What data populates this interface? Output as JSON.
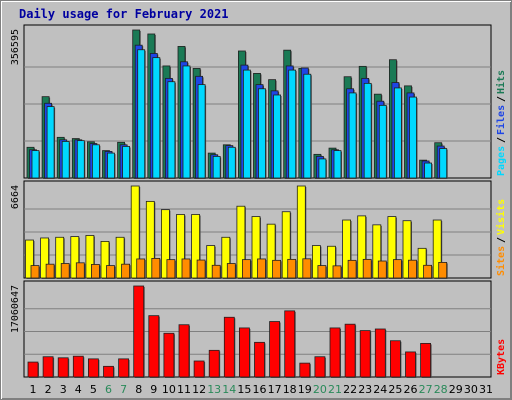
{
  "chart_data": {
    "type": "bar",
    "title": "Daily usage for February 2021",
    "categories": [
      "1",
      "2",
      "3",
      "4",
      "5",
      "6",
      "7",
      "8",
      "9",
      "10",
      "11",
      "12",
      "13",
      "14",
      "15",
      "16",
      "17",
      "18",
      "19",
      "20",
      "21",
      "22",
      "23",
      "24",
      "25",
      "26",
      "27",
      "28",
      "29",
      "30",
      "31"
    ],
    "weekend_days": [
      6,
      7,
      13,
      14,
      20,
      21,
      27,
      28
    ],
    "colors": {
      "hits": "#1a7a55",
      "files": "#1e46e6",
      "pages": "#00d8ff",
      "visits": "#ffff00",
      "sites": "#ff8c00",
      "kbytes": "#ff0000",
      "weekday_label": "#000000",
      "weekend_label": "#2a8a5a"
    },
    "panels": [
      {
        "id": "top",
        "ymax": 356595,
        "ymax_label": "356595",
        "legend": [
          {
            "label": "Pages",
            "color": "#00d8ff"
          },
          {
            "label": "Files",
            "color": "#1e46e6"
          },
          {
            "label": "Hits",
            "color": "#1a7a55"
          }
        ],
        "series": [
          {
            "name": "Hits",
            "color": "#1a7a55",
            "values": [
              74000,
              196000,
              98000,
              95000,
              87000,
              66000,
              86000,
              356595,
              347000,
              270000,
              317000,
              264000,
              60000,
              80000,
              306000,
              252000,
              237000,
              308000,
              264000,
              57000,
              72000,
              244000,
              269000,
              202000,
              285000,
              222000,
              43000,
              85000,
              0,
              0,
              0
            ]
          },
          {
            "name": "Files",
            "color": "#1e46e6",
            "values": [
              68000,
              180000,
              92000,
              92000,
              83000,
              64000,
              80000,
              320000,
              300000,
              240000,
              280000,
              245000,
              56000,
              78000,
              272000,
              225000,
              210000,
              270000,
              265000,
              52000,
              68000,
              215000,
              240000,
              185000,
              230000,
              205000,
              41000,
              77000,
              0,
              0,
              0
            ]
          },
          {
            "name": "Pages",
            "color": "#00d8ff",
            "values": [
              66000,
              172000,
              88000,
              90000,
              80000,
              60000,
              76000,
              309000,
              290000,
              232000,
              270000,
              225000,
              52000,
              74000,
              260000,
              215000,
              200000,
              260000,
              250000,
              46000,
              66000,
              205000,
              228000,
              175000,
              217000,
              195000,
              36000,
              71000,
              0,
              0,
              0
            ]
          }
        ]
      },
      {
        "id": "mid",
        "ymax": 6664,
        "ymax_label": "6664",
        "legend": [
          {
            "label": "Sites",
            "color": "#ff8c00"
          },
          {
            "label": "Visits",
            "color": "#ffff00"
          }
        ],
        "series": [
          {
            "name": "Visits",
            "color": "#ffff00",
            "values": [
              2750,
              2900,
              2950,
              3000,
              3080,
              2650,
              2950,
              6664,
              5550,
              4950,
              4600,
              4600,
              2350,
              2950,
              5200,
              4450,
              3900,
              4800,
              6664,
              2350,
              2300,
              4200,
              4500,
              3850,
              4450,
              4150,
              2150,
              4200,
              0,
              0,
              0
            ]
          },
          {
            "name": "Sites",
            "color": "#ff8c00",
            "values": [
              900,
              1000,
              1050,
              1100,
              980,
              900,
              1000,
              1380,
              1420,
              1330,
              1380,
              1300,
              920,
              1050,
              1330,
              1380,
              1280,
              1350,
              1390,
              900,
              880,
              1280,
              1350,
              1230,
              1330,
              1290,
              920,
              1130,
              0,
              0,
              0
            ]
          }
        ]
      },
      {
        "id": "bot",
        "ymax": 17060647,
        "ymax_label": "17060647",
        "legend": [
          {
            "label": "KBytes",
            "color": "#ff0000"
          }
        ],
        "series": [
          {
            "name": "KBytes",
            "color": "#ff0000",
            "values": [
              2800000,
              3800000,
              3600000,
              3900000,
              3400000,
              2000000,
              3400000,
              17060647,
              11500000,
              8200000,
              9800000,
              3000000,
              5000000,
              11200000,
              9200000,
              6500000,
              10400000,
              12400000,
              2600000,
              3800000,
              9200000,
              9900000,
              8700000,
              9000000,
              6800000,
              4700000,
              6300000,
              0,
              0,
              0,
              0
            ]
          }
        ]
      }
    ]
  }
}
